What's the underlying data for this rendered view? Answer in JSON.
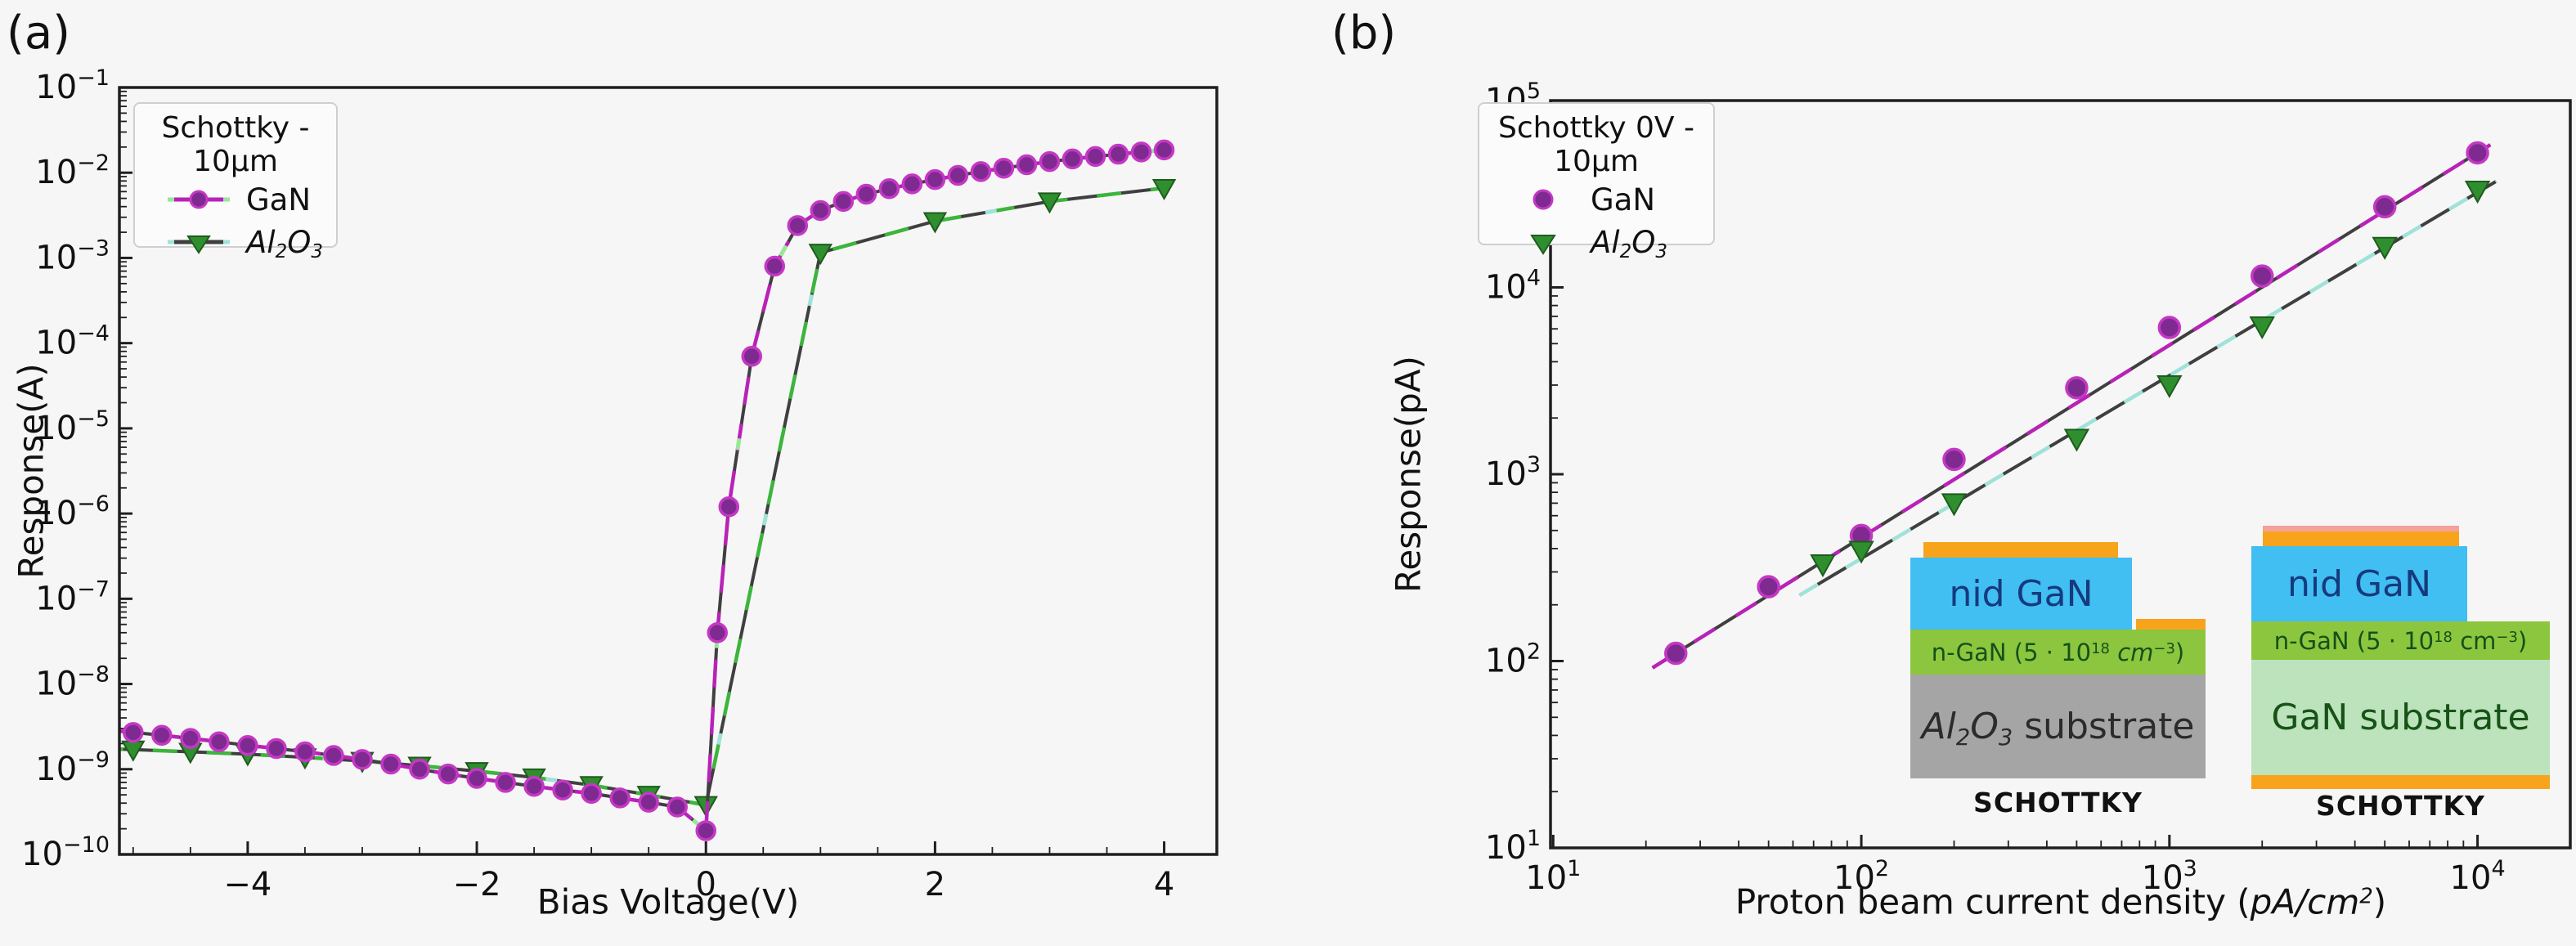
{
  "figure": {
    "panel_a_label": "(a)",
    "panel_b_label": "(b)",
    "bg": "#f6f6f6"
  },
  "colors": {
    "spine": "#1f1f1f",
    "text": "#111111",
    "gan_marker_fill": "#7e2a91",
    "gan_marker_edge": "#c438c4",
    "gan_line": "#b822b8",
    "gan_accent": "#98e698",
    "al2o3_marker_fill": "#2f8f2f",
    "al2o3_marker_edge": "#1e5c1e",
    "al2o3_line_green": "#3cb53c",
    "al2o3_accent": "#9fe3d8",
    "base_line": "#3f3f3f",
    "legend_border": "#cfcfcf",
    "legend_bg": "#fbfbfb"
  },
  "chart_data": [
    {
      "type": "line",
      "panel": "a",
      "xlabel": "Bias Voltage(V)",
      "ylabel": "Response(A)",
      "xlim": [
        -5.12,
        4.46
      ],
      "ylim": [
        1e-10,
        0.1
      ],
      "x_ticks": [
        {
          "v": -4,
          "label": "−4"
        },
        {
          "v": -2,
          "label": "−2"
        },
        {
          "v": 0,
          "label": "0"
        },
        {
          "v": 2,
          "label": "2"
        },
        {
          "v": 4,
          "label": "4"
        }
      ],
      "x_minor_step": 0.5,
      "y_tick_exponents": [
        -1,
        -2,
        -3,
        -4,
        -5,
        -6,
        -7,
        -8,
        -9,
        -10
      ],
      "legend": {
        "title": "Schottky - 10μm",
        "entries": [
          {
            "series": "GaN",
            "label_parts": [
              {
                "t": "GaN"
              }
            ]
          },
          {
            "series": "Al2O3",
            "label_parts": [
              {
                "t": "Al",
                "i": true
              },
              {
                "t": "2",
                "sub": true,
                "i": true
              },
              {
                "t": "O",
                "i": true
              },
              {
                "t": "3",
                "sub": true,
                "i": true
              }
            ]
          }
        ]
      },
      "series": [
        {
          "name": "Al2O3",
          "marker": "triangle",
          "x": [
            -5.3,
            -5,
            -4.5,
            -4,
            -3.5,
            -3,
            -2.5,
            -2,
            -1.5,
            -1,
            -0.5,
            0,
            1,
            2,
            3,
            4
          ],
          "y": [
            1.75e-09,
            1.7e-09,
            1.6e-09,
            1.5e-09,
            1.38e-09,
            1.25e-09,
            1.1e-09,
            9.5e-10,
            8e-10,
            6.5e-10,
            5e-10,
            3.8e-10,
            0.00115,
            0.0027,
            0.0046,
            0.0066
          ]
        },
        {
          "name": "GaN",
          "marker": "circle",
          "x": [
            -5.25,
            -5,
            -4.75,
            -4.5,
            -4.25,
            -4,
            -3.75,
            -3.5,
            -3.25,
            -3,
            -2.75,
            -2.5,
            -2.25,
            -2,
            -1.75,
            -1.5,
            -1.25,
            -1,
            -0.75,
            -0.5,
            -0.25,
            0,
            0.1,
            0.2,
            0.4,
            0.6,
            0.8,
            1,
            1.2,
            1.4,
            1.6,
            1.8,
            2,
            2.2,
            2.4,
            2.6,
            2.8,
            3,
            3.2,
            3.4,
            3.6,
            3.8,
            4
          ],
          "y": [
            2.9e-09,
            2.7e-09,
            2.5e-09,
            2.3e-09,
            2.1e-09,
            1.9e-09,
            1.75e-09,
            1.6e-09,
            1.45e-09,
            1.3e-09,
            1.15e-09,
            1e-09,
            8.8e-10,
            7.8e-10,
            7e-10,
            6.3e-10,
            5.7e-10,
            5.2e-10,
            4.6e-10,
            4.1e-10,
            3.6e-10,
            1.9e-10,
            4e-08,
            1.2e-06,
            7e-05,
            0.0008,
            0.0024,
            0.0036,
            0.0046,
            0.0056,
            0.0065,
            0.0074,
            0.0083,
            0.0093,
            0.0103,
            0.0113,
            0.0124,
            0.0135,
            0.0145,
            0.0155,
            0.0165,
            0.0175,
            0.0185
          ]
        }
      ]
    },
    {
      "type": "scatter",
      "panel": "b",
      "xlabel_parts": [
        {
          "t": "Proton beam current density ("
        },
        {
          "t": "pA/cm",
          "i": true
        },
        {
          "t": "2",
          "sup": true,
          "i": true
        },
        {
          "t": ")"
        }
      ],
      "ylabel": "Response(pA)",
      "xlim": [
        9.8,
        20000
      ],
      "ylim": [
        10,
        100000
      ],
      "x_tick_exponents": [
        1,
        2,
        3,
        4
      ],
      "y_tick_exponents": [
        1,
        2,
        3,
        4,
        5
      ],
      "legend": {
        "title": "Schottky 0V - 10μm",
        "entries": [
          {
            "series": "GaN",
            "label_parts": [
              {
                "t": "GaN"
              }
            ]
          },
          {
            "series": "Al2O3",
            "label_parts": [
              {
                "t": "Al",
                "i": true
              },
              {
                "t": "2",
                "sub": true,
                "i": true
              },
              {
                "t": "O",
                "i": true
              },
              {
                "t": "3",
                "sub": true,
                "i": true
              }
            ]
          }
        ]
      },
      "series": [
        {
          "name": "GaN",
          "marker": "circle",
          "x": [
            25,
            50,
            100,
            200,
            500,
            1000,
            2000,
            5000,
            10000
          ],
          "y": [
            110,
            250,
            470,
            1200,
            2900,
            6100,
            11500,
            27000,
            52500
          ]
        },
        {
          "name": "Al2O3",
          "marker": "triangle",
          "x": [
            75,
            100,
            200,
            500,
            1000,
            2000,
            5000,
            10000
          ],
          "y": [
            330,
            390,
            700,
            1550,
            3000,
            6200,
            16500,
            33000
          ]
        }
      ],
      "fits": [
        {
          "series": "GaN",
          "x": [
            21,
            11000
          ],
          "y": [
            92,
            58000
          ]
        },
        {
          "series": "Al2O3",
          "x": [
            63,
            11500
          ],
          "y": [
            225,
            37000
          ]
        }
      ]
    }
  ],
  "insets": {
    "left": {
      "nid_label": "nid GaN",
      "ngan_parts": [
        {
          "t": "n-GaN (5 · 10"
        },
        {
          "t": "18",
          "sup": true
        },
        {
          "t": " "
        },
        {
          "t": "cm",
          "i": true
        },
        {
          "t": "−3",
          "sup": true
        },
        {
          "t": ")"
        }
      ],
      "substrate_parts": [
        {
          "t": "Al",
          "i": true
        },
        {
          "t": "2",
          "sub": true,
          "i": true
        },
        {
          "t": "O",
          "i": true
        },
        {
          "t": "3",
          "sub": true,
          "i": true
        },
        {
          "t": " substrate"
        }
      ],
      "schottky_label": "SCHOTTKY"
    },
    "right": {
      "nid_label": "nid GaN",
      "ngan_parts": [
        {
          "t": "n-GaN (5 · 10"
        },
        {
          "t": "18",
          "sup": true
        },
        {
          "t": " cm"
        },
        {
          "t": "−3",
          "sup": true
        },
        {
          "t": ")"
        }
      ],
      "substrate_label": "GaN substrate",
      "schottky_label": "SCHOTTKY"
    },
    "colors": {
      "contact_orange": "#f7a41c",
      "nid_blue": "#41bef2",
      "ngan_green": "#8cc63e",
      "sapphire_gray": "#a5a5a5",
      "gan_sub_green": "#bce3bc",
      "pink_cap": "#f2a29b",
      "nid_text": "#153a7d",
      "ngan_text": "#14501a",
      "sub_text_dark": "#2b2b2b",
      "gan_sub_text": "#175217"
    }
  }
}
